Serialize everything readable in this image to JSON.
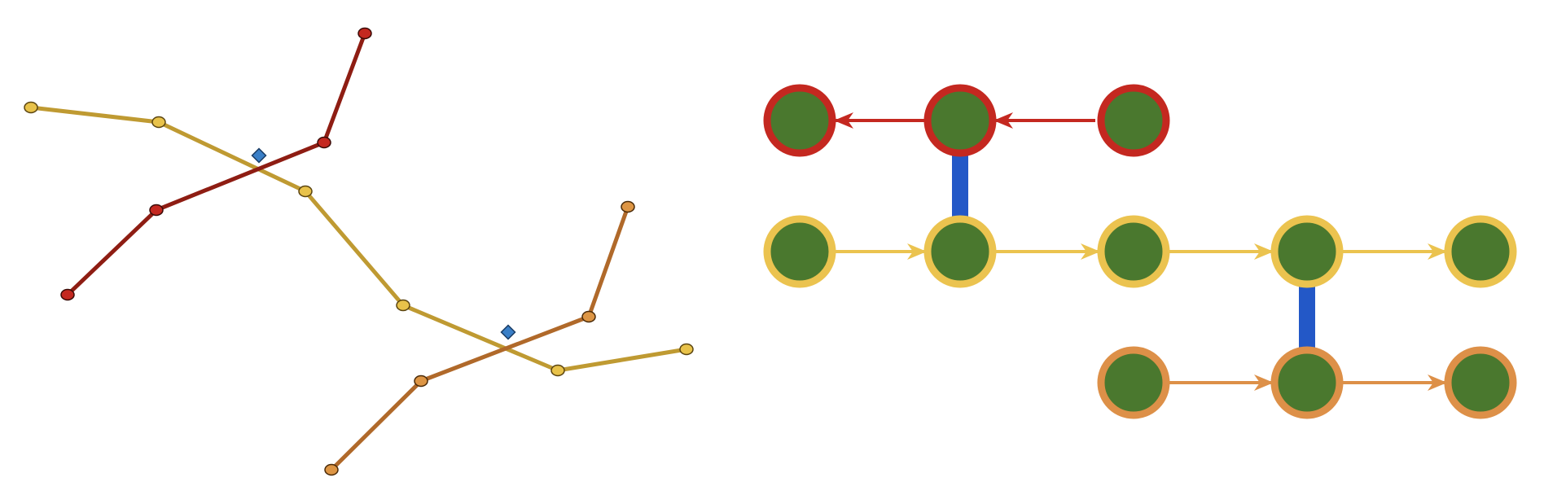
{
  "colors": {
    "background": "#ffffff",
    "road_red": "#8e1d13",
    "road_red_node": "#c42820",
    "road_yellow": "#bf9a32",
    "road_yellow_node": "#e8c24a",
    "road_orange": "#b0692a",
    "road_orange_node": "#dd9544",
    "intersection_marker": "#3a7fc7",
    "node_fill": "#4a782e",
    "ring_red": "#c42820",
    "ring_yellow": "#ebc34f",
    "ring_orange": "#dd9048",
    "connector": "#2358c7"
  },
  "diagram": {
    "left_panel": {
      "intersection_marker_icon": "diamond-icon",
      "roads": [
        {
          "id": "red",
          "color_key": "road_red",
          "node_color_key": "road_red_node"
        },
        {
          "id": "yellow-upper",
          "color_key": "road_yellow",
          "node_color_key": "road_yellow_node"
        },
        {
          "id": "orange",
          "color_key": "road_orange",
          "node_color_key": "road_orange_node"
        },
        {
          "id": "yellow-lower",
          "color_key": "road_yellow",
          "node_color_key": "road_yellow_node"
        }
      ]
    },
    "right_panel": {
      "rows": [
        {
          "id": "top",
          "ring_color_key": "ring_red",
          "arrow_direction": "left",
          "node_count": 3
        },
        {
          "id": "middle",
          "ring_color_key": "ring_yellow",
          "arrow_direction": "right",
          "node_count": 5
        },
        {
          "id": "bottom",
          "ring_color_key": "ring_orange",
          "arrow_direction": "right",
          "node_count": 3
        }
      ],
      "connector_count": 2
    }
  }
}
